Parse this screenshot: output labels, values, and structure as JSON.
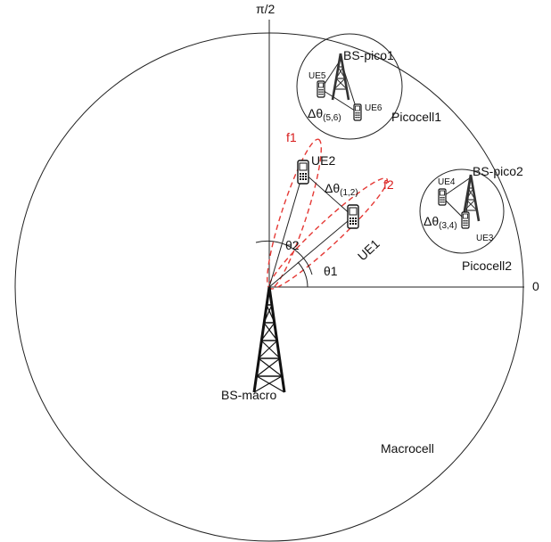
{
  "labels": {
    "pi_half": "π/2",
    "zero": "0",
    "macrocell": "Macrocell",
    "bs_macro": "BS-macro",
    "picocell1": "Picocell1",
    "picocell2": "Picocell2",
    "bs_pico1": "BS-pico1",
    "bs_pico2": "BS-pico2",
    "ue1": "UE1",
    "ue2": "UE2",
    "ue3": "UE3",
    "ue4": "UE4",
    "ue5": "UE5",
    "ue6": "UE6",
    "f1": "f1",
    "f2": "f2",
    "theta1": "θ1",
    "theta2": "θ2",
    "delta_theta": "Δθ",
    "dt12_sub": "(1,2)",
    "dt34_sub": "(3,4)",
    "dt56_sub": "(5,6)"
  },
  "colors": {
    "line": "#222222",
    "beam": "#e53935",
    "text": "#111111"
  }
}
